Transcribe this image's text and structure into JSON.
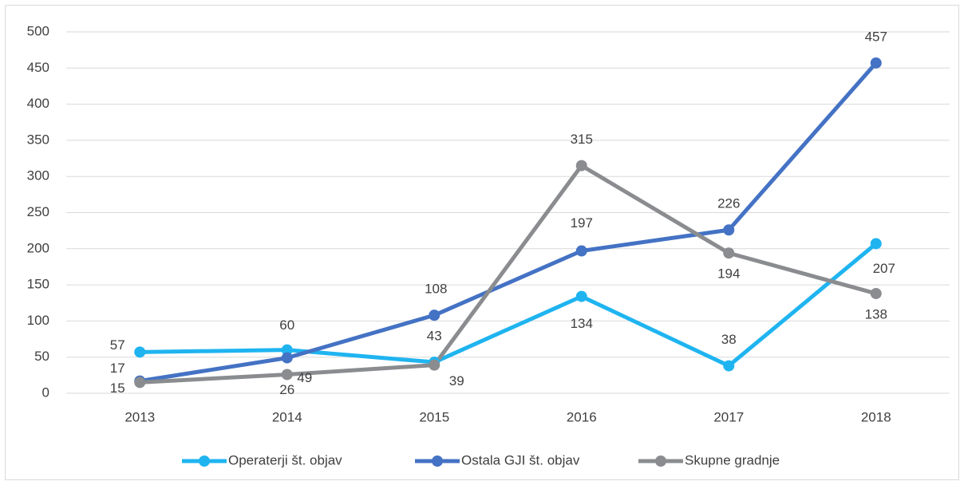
{
  "chart_data": {
    "type": "line",
    "categories": [
      "2013",
      "2014",
      "2015",
      "2016",
      "2017",
      "2018"
    ],
    "series": [
      {
        "name": "Operaterji št. objav",
        "color": "#1fb4f0",
        "values": [
          57,
          60,
          43,
          134,
          38,
          207
        ]
      },
      {
        "name": "Ostala GJI št. objav",
        "color": "#4472c4",
        "values": [
          17,
          49,
          108,
          197,
          226,
          457
        ]
      },
      {
        "name": "Skupne gradnje",
        "color": "#8a8c8f",
        "values": [
          15,
          26,
          39,
          315,
          194,
          138
        ]
      }
    ],
    "ylim": [
      0,
      500
    ],
    "yticks": [
      0,
      50,
      100,
      150,
      200,
      250,
      300,
      350,
      400,
      450,
      500
    ],
    "grid": true,
    "legend": "bottom"
  }
}
